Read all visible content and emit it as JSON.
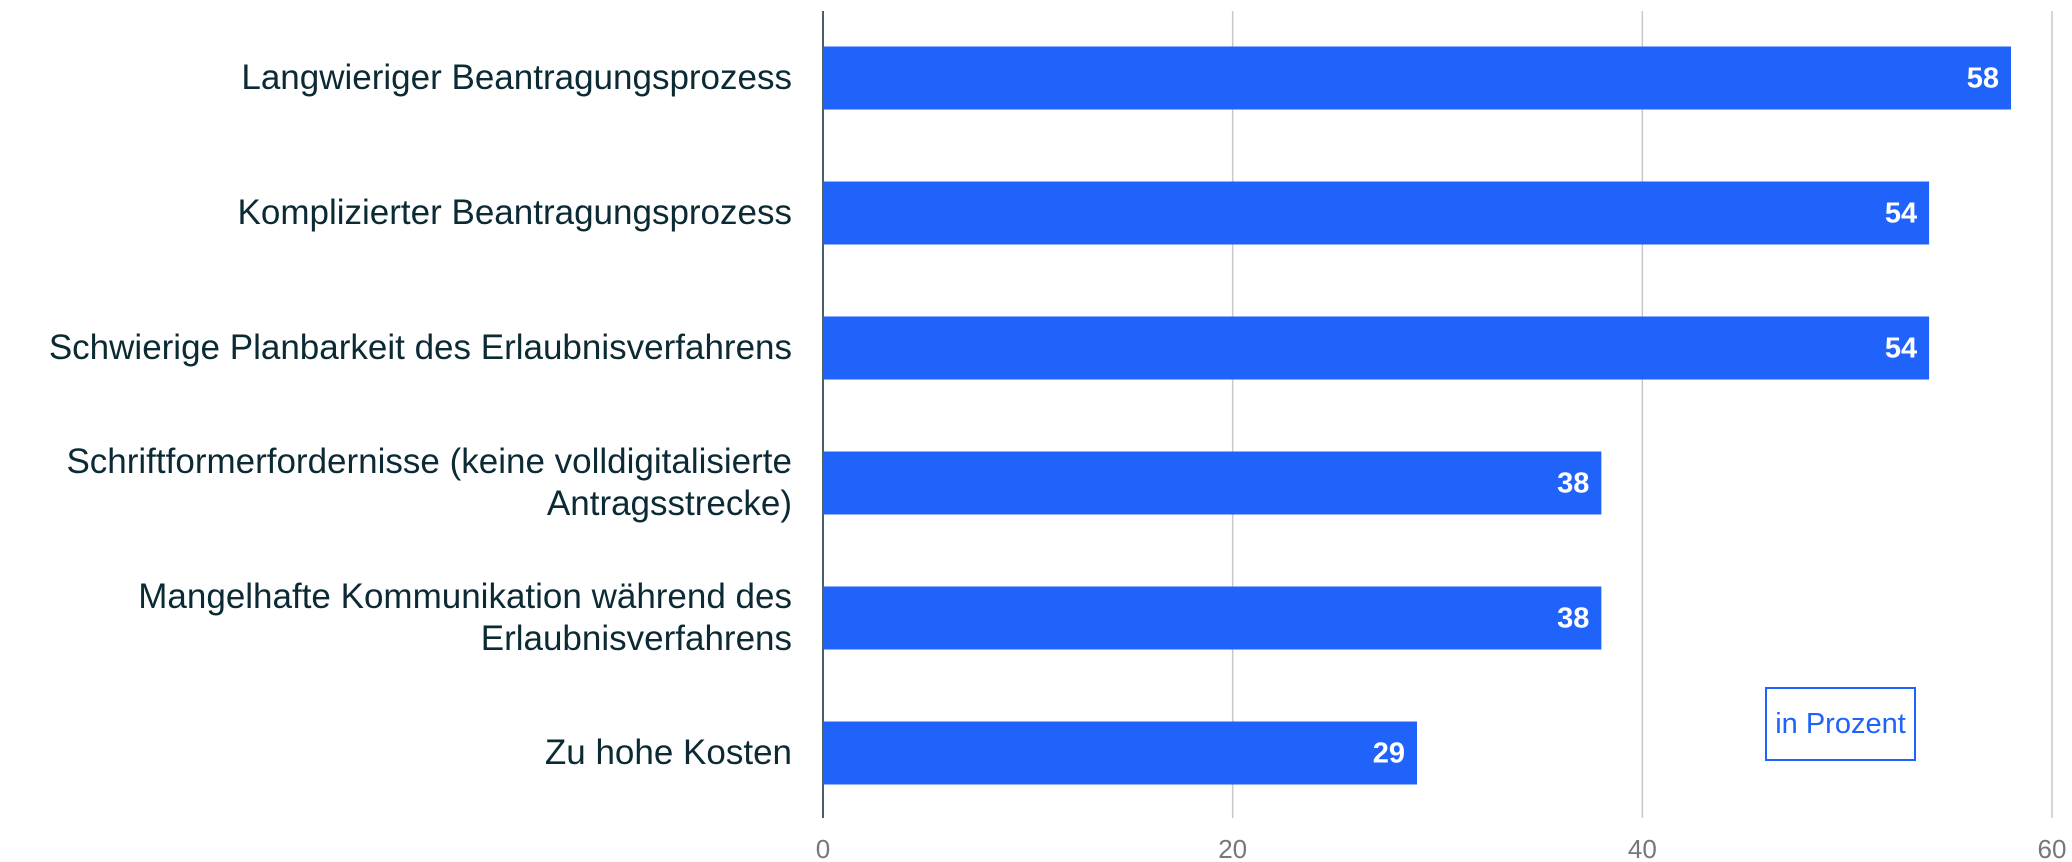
{
  "chart_data": {
    "type": "bar",
    "orientation": "horizontal",
    "categories": [
      "Langwieriger Beantragungsprozess",
      "Komplizierter Beantragungsprozess",
      "Schwierige Planbarkeit des Erlaubnisverfahrens",
      "Schriftformerfordernisse (keine volldigitalisierte Antragsstrecke)",
      "Mangelhafte Kommunikation während des Erlaubnisverfahrens",
      "Zu hohe Kosten"
    ],
    "values": [
      58,
      54,
      54,
      38,
      38,
      29
    ],
    "color": "#1f63fa",
    "xlim": [
      0,
      60
    ],
    "xticks": [
      0,
      20,
      40,
      60
    ],
    "grid": true,
    "annotation": "in Prozent"
  }
}
